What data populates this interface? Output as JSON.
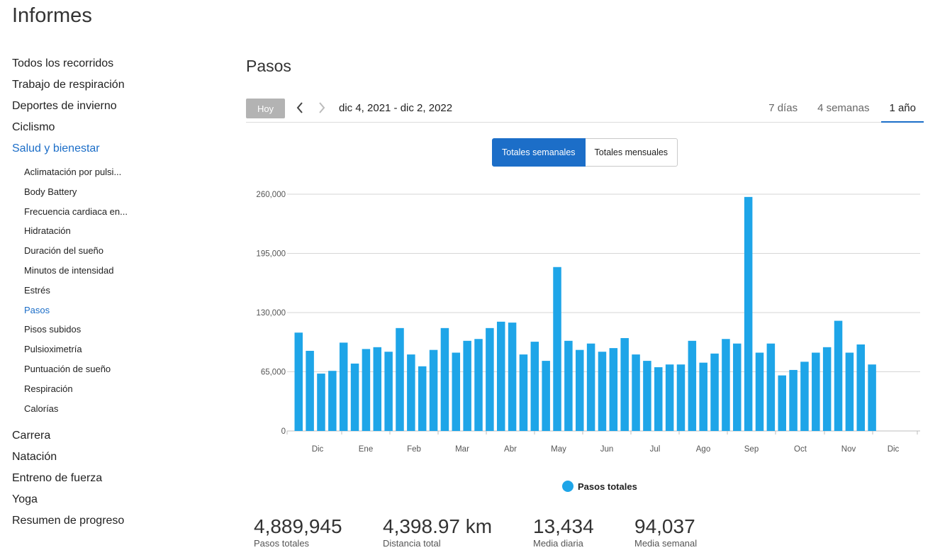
{
  "page_title": "Informes",
  "sidebar": {
    "top_items": [
      {
        "label": "Todos los recorridos"
      },
      {
        "label": "Trabajo de respiración"
      },
      {
        "label": "Deportes de invierno"
      },
      {
        "label": "Ciclismo"
      },
      {
        "label": "Salud y bienestar",
        "active": true
      }
    ],
    "sub_items": [
      {
        "label": "Aclimatación por pulsi..."
      },
      {
        "label": "Body Battery"
      },
      {
        "label": "Frecuencia cardiaca en..."
      },
      {
        "label": "Hidratación"
      },
      {
        "label": "Duración del sueño"
      },
      {
        "label": "Minutos de intensidad"
      },
      {
        "label": "Estrés"
      },
      {
        "label": "Pasos",
        "active": true
      },
      {
        "label": "Pisos subidos"
      },
      {
        "label": "Pulsioximetría"
      },
      {
        "label": "Puntuación de sueño"
      },
      {
        "label": "Respiración"
      },
      {
        "label": "Calorías"
      }
    ],
    "bottom_items": [
      {
        "label": "Carrera"
      },
      {
        "label": "Natación"
      },
      {
        "label": "Entreno de fuerza"
      },
      {
        "label": "Yoga"
      },
      {
        "label": "Resumen de progreso"
      }
    ]
  },
  "section_title": "Pasos",
  "toolbar": {
    "today_label": "Hoy",
    "prev_icon": "chevron-left-icon",
    "next_icon": "chevron-right-icon",
    "date_range": "dic 4, 2021 - dic 2, 2022",
    "range_tabs": [
      {
        "label": "7 días"
      },
      {
        "label": "4 semanas"
      },
      {
        "label": "1 año",
        "active": true
      }
    ]
  },
  "toggle": {
    "weekly_label": "Totales semanales",
    "monthly_label": "Totales mensuales",
    "selected": "weekly"
  },
  "colors": {
    "accent": "#1c6ec8",
    "bar": "#1ea5e8",
    "grid": "#d6d6d6"
  },
  "chart_data": {
    "type": "bar",
    "series": [
      {
        "name": "Pasos totales",
        "values": [
          108000,
          88000,
          63000,
          66000,
          97000,
          74000,
          90000,
          92000,
          87000,
          113000,
          84000,
          71000,
          89000,
          113000,
          86000,
          99000,
          101000,
          113000,
          120000,
          119000,
          84000,
          98000,
          77000,
          180000,
          99000,
          89000,
          96000,
          87000,
          91000,
          102000,
          84000,
          77000,
          70000,
          73000,
          73000,
          99000,
          75000,
          85000,
          101000,
          96000,
          257000,
          86000,
          96000,
          61000,
          67000,
          76000,
          86000,
          92000,
          121000,
          86000,
          95000,
          73000
        ]
      }
    ],
    "x_labels": [
      "Dic",
      "Ene",
      "Feb",
      "Mar",
      "Abr",
      "May",
      "Jun",
      "Jul",
      "Ago",
      "Sep",
      "Oct",
      "Nov",
      "Dic"
    ],
    "y_ticks": [
      0,
      65000,
      130000,
      195000,
      260000
    ],
    "y_tick_labels": [
      "0",
      "65,000",
      "130,000",
      "195,000",
      "260,000"
    ],
    "ylim": [
      0,
      260000
    ],
    "grid": true,
    "legend": "bottom-center",
    "xlabel": "",
    "ylabel": ""
  },
  "legend_label": "Pasos totales",
  "stats": [
    {
      "value": "4,889,945",
      "label": "Pasos totales"
    },
    {
      "value": "4,398.97 km",
      "label": "Distancia total"
    },
    {
      "value": "13,434",
      "label": "Media diaria"
    },
    {
      "value": "94,037",
      "label": "Media semanal"
    }
  ]
}
